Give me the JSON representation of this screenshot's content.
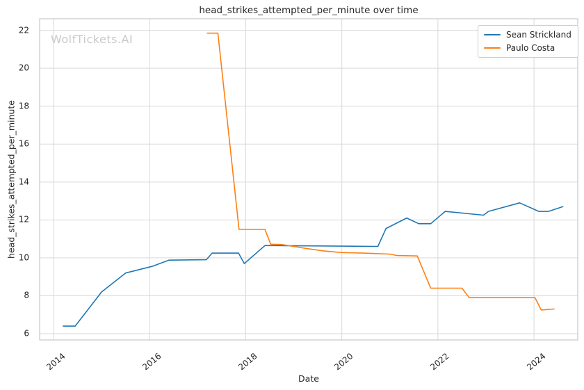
{
  "watermark": {
    "text": "WolfTickets.AI",
    "color": "#c9c9c9"
  },
  "chart_data": {
    "type": "line",
    "title": "head_strikes_attempted_per_minute over time",
    "xlabel": "Date",
    "ylabel": "head_strikes_attempted_per_minute",
    "x_ticks": [
      "2014",
      "2016",
      "2018",
      "2020",
      "2022",
      "2024"
    ],
    "y_ticks": [
      "6",
      "8",
      "10",
      "12",
      "14",
      "16",
      "18",
      "20",
      "22"
    ],
    "xlim": [
      2013.71,
      2024.91
    ],
    "ylim": [
      5.67,
      22.61
    ],
    "grid": true,
    "legend_position": "upper right",
    "series": [
      {
        "name": "Sean Strickland",
        "color": "#1f77b4",
        "points": [
          [
            2014.2,
            6.4
          ],
          [
            2014.45,
            6.4
          ],
          [
            2015.0,
            8.2
          ],
          [
            2015.5,
            9.2
          ],
          [
            2016.05,
            9.55
          ],
          [
            2016.4,
            9.88
          ],
          [
            2017.18,
            9.9
          ],
          [
            2017.3,
            10.25
          ],
          [
            2017.85,
            10.25
          ],
          [
            2017.97,
            9.7
          ],
          [
            2018.4,
            10.65
          ],
          [
            2020.75,
            10.6
          ],
          [
            2020.92,
            11.55
          ],
          [
            2021.35,
            12.1
          ],
          [
            2021.6,
            11.8
          ],
          [
            2021.85,
            11.8
          ],
          [
            2022.15,
            12.45
          ],
          [
            2022.95,
            12.25
          ],
          [
            2023.05,
            12.45
          ],
          [
            2023.7,
            12.9
          ],
          [
            2024.1,
            12.45
          ],
          [
            2024.3,
            12.45
          ],
          [
            2024.6,
            12.7
          ]
        ]
      },
      {
        "name": "Paulo Costa",
        "color": "#ff7f0e",
        "points": [
          [
            2017.2,
            21.85
          ],
          [
            2017.42,
            21.85
          ],
          [
            2017.86,
            11.5
          ],
          [
            2018.4,
            11.5
          ],
          [
            2018.52,
            10.72
          ],
          [
            2018.75,
            10.7
          ],
          [
            2019.0,
            10.6
          ],
          [
            2019.25,
            10.5
          ],
          [
            2019.6,
            10.37
          ],
          [
            2020.0,
            10.28
          ],
          [
            2020.45,
            10.25
          ],
          [
            2021.0,
            10.2
          ],
          [
            2021.15,
            10.12
          ],
          [
            2021.57,
            10.1
          ],
          [
            2021.85,
            8.4
          ],
          [
            2022.5,
            8.4
          ],
          [
            2022.65,
            7.9
          ],
          [
            2024.02,
            7.9
          ],
          [
            2024.15,
            7.25
          ],
          [
            2024.42,
            7.3
          ]
        ]
      }
    ]
  }
}
